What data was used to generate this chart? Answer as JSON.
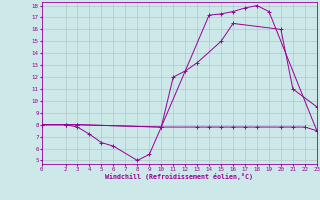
{
  "xlabel": "Windchill (Refroidissement éolien,°C)",
  "xlim": [
    0,
    23
  ],
  "ylim": [
    5,
    18
  ],
  "yticks": [
    5,
    6,
    7,
    8,
    9,
    10,
    11,
    12,
    13,
    14,
    15,
    16,
    17,
    18
  ],
  "xticks": [
    0,
    2,
    3,
    4,
    5,
    6,
    7,
    8,
    9,
    10,
    11,
    12,
    13,
    14,
    15,
    16,
    17,
    18,
    19,
    20,
    21,
    22,
    23
  ],
  "background_color": "#cce8e8",
  "line_color": "#990099",
  "grid_color": "#b0c8c8",
  "line1_x": [
    0,
    2,
    3,
    10,
    14,
    15,
    16,
    17,
    18,
    19,
    23
  ],
  "line1_y": [
    8,
    8,
    8,
    7.8,
    17.2,
    17.3,
    17.5,
    17.8,
    18.0,
    17.5,
    7.5
  ],
  "line2_x": [
    0,
    2,
    3,
    4,
    5,
    6,
    8,
    9,
    10,
    11,
    12,
    13,
    15,
    16,
    20,
    21,
    23
  ],
  "line2_y": [
    8,
    8,
    7.8,
    7.2,
    6.5,
    6.2,
    5.0,
    5.5,
    7.8,
    12.0,
    12.5,
    13.2,
    15.0,
    16.5,
    16.0,
    11.0,
    9.5
  ],
  "line3_x": [
    0,
    2,
    3,
    10,
    13,
    14,
    15,
    16,
    17,
    18,
    20,
    21,
    22,
    23
  ],
  "line3_y": [
    8,
    8,
    8,
    7.8,
    7.8,
    7.8,
    7.8,
    7.8,
    7.8,
    7.8,
    7.8,
    7.8,
    7.8,
    7.5
  ]
}
